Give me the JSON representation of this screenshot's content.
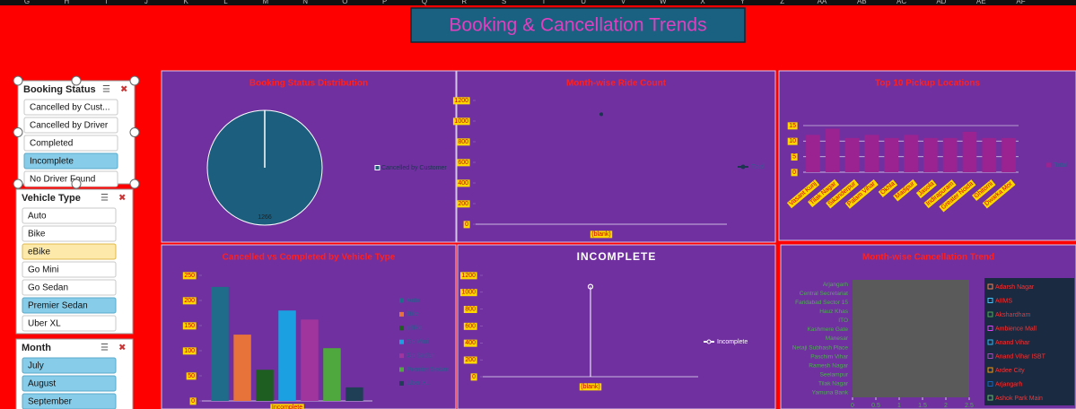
{
  "column_headers": [
    "G",
    "H",
    "I",
    "J",
    "K",
    "L",
    "M",
    "N",
    "O",
    "P",
    "Q",
    "R",
    "S",
    "T",
    "U",
    "V",
    "W",
    "X",
    "Y",
    "Z",
    "AA",
    "AB",
    "AC",
    "AD",
    "AE",
    "AF"
  ],
  "dashboard_title": "Booking & Cancellation Trends",
  "slicers": [
    {
      "title": "Booking Status",
      "items": [
        "Cancelled by Cust...",
        "Cancelled by Driver",
        "Completed",
        "Incomplete",
        "No Driver Found"
      ],
      "selected": [
        3
      ],
      "hovered": []
    },
    {
      "title": "Vehicle Type",
      "items": [
        "Auto",
        "Bike",
        "eBike",
        "Go Mini",
        "Go Sedan",
        "Premier Sedan",
        "Uber XL"
      ],
      "selected": [
        5
      ],
      "hovered": [
        2
      ]
    },
    {
      "title": "Month",
      "items": [
        "July",
        "August",
        "September"
      ],
      "selected": [
        0,
        1,
        2
      ],
      "hovered": []
    }
  ],
  "chart_data": [
    {
      "type": "pie",
      "title": "Booking Status Distribution",
      "categories": [
        "Cancelled by Customer"
      ],
      "values": [
        1266
      ],
      "colors": [
        "#1b5e7e"
      ]
    },
    {
      "type": "line",
      "title": "Month-wise Ride Count",
      "categories": [
        "(blank)"
      ],
      "series": [
        {
          "name": "Total",
          "color": "#1b3550",
          "values": [
            1066
          ]
        }
      ],
      "ylim": [
        0,
        1200
      ],
      "yticks": [
        0,
        200,
        400,
        600,
        800,
        1000,
        1200
      ],
      "label_background": "#ffd700",
      "drop_lines": false
    },
    {
      "type": "bar",
      "title": "Top 10 Pickup Locations",
      "categories": [
        "Vasant Kunj",
        "Tilak Nagar",
        "Sikanderpur",
        "Palam Vihar",
        "Okhla",
        "Madipur",
        "Jasola",
        "Indirapuram",
        "Greater Noida",
        "Ghitorni",
        "Dwarka Mor"
      ],
      "series": [
        {
          "name": "Total",
          "color": "#9b2391",
          "values": [
            12,
            14,
            11,
            12,
            11,
            12,
            11,
            11,
            13,
            11,
            11
          ]
        }
      ],
      "ylim": [
        0,
        15
      ],
      "yticks": [
        0,
        5,
        10,
        15
      ],
      "grid": true,
      "label_background": "#ffd700"
    },
    {
      "type": "bar",
      "title": "Cancelled vs Completed by Vehicle Type",
      "categories": [
        "Incomplete"
      ],
      "series": [
        {
          "name": "Auto",
          "color": "#1f6b8a",
          "values": [
            227
          ]
        },
        {
          "name": "Bike",
          "color": "#e8733a",
          "values": [
            132
          ]
        },
        {
          "name": "eBike",
          "color": "#1e5e20",
          "values": [
            62
          ]
        },
        {
          "name": "Go Mini",
          "color": "#1ba1e2",
          "values": [
            180
          ]
        },
        {
          "name": "Go Sedan",
          "color": "#a0359e",
          "values": [
            162
          ]
        },
        {
          "name": "Premier Sedan",
          "color": "#4fa83d",
          "values": [
            105
          ]
        },
        {
          "name": "Uber XL",
          "color": "#1e3f55",
          "values": [
            27
          ]
        }
      ],
      "ylim": [
        0,
        250
      ],
      "yticks": [
        0,
        50,
        100,
        150,
        200,
        250
      ],
      "label_background": "#ffd700"
    },
    {
      "type": "line",
      "title": "INCOMPLETE",
      "title_color": "#ffffff",
      "categories": [
        "(blank)"
      ],
      "series": [
        {
          "name": "Incomplete",
          "color": "#ffffff",
          "values": [
            1066
          ]
        }
      ],
      "ylim": [
        0,
        1200
      ],
      "yticks": [
        0,
        200,
        400,
        600,
        800,
        1000,
        1200
      ],
      "label_background": "#ffd700",
      "drop_lines": true
    },
    {
      "type": "stripe",
      "title": "Month-wise Cancellation Trend",
      "categories": [
        "Arjangarh",
        "Central Secretariat",
        "Faridabad Sector 15",
        "Hauz Khas",
        "ITO",
        "Kashmere Gate",
        "Manesar",
        "Netaji Subhash Place",
        "Paschim Vihar",
        "Ramesh Nagar",
        "Seelampur",
        "Tilak Nagar",
        "Yamuna Bank"
      ],
      "xlim": [
        0,
        2.5
      ],
      "xticks": [
        0,
        0.5,
        1,
        1.5,
        2,
        2.5
      ],
      "series": [
        {
          "name": "Adarsh Nagar",
          "color": "#ff7f50"
        },
        {
          "name": "AIIMS",
          "color": "#40c4ff"
        },
        {
          "name": "Akshardham",
          "color": "#4caf50"
        },
        {
          "name": "Ambience Mall",
          "color": "#e040fb"
        },
        {
          "name": "Anand Vihar",
          "color": "#29b6f6"
        },
        {
          "name": "Anand Vihar ISBT",
          "color": "#ab47bc"
        },
        {
          "name": "Ardee City",
          "color": "#ff9800"
        },
        {
          "name": "Arjangarh",
          "color": "#1565c0"
        },
        {
          "name": "Ashok Park Main",
          "color": "#66bb6a"
        }
      ]
    }
  ]
}
